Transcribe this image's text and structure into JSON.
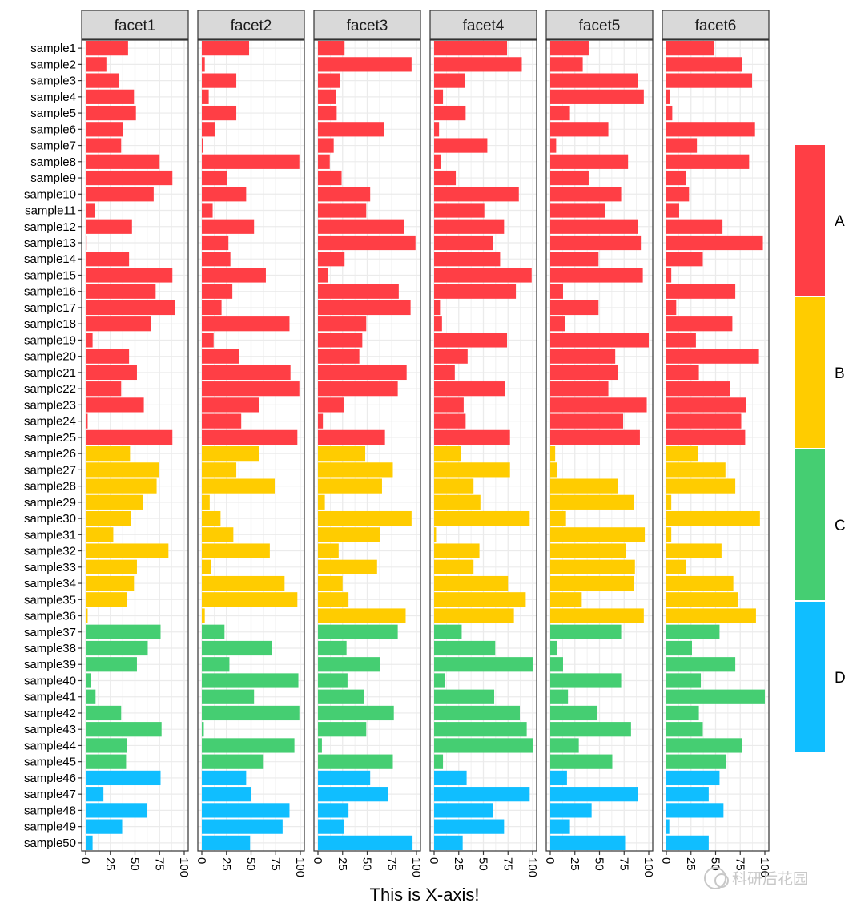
{
  "chart_data": {
    "type": "bar",
    "orientation": "horizontal",
    "xlabel": "This is X-axis!",
    "ylabel": "",
    "xlim": [
      0,
      100
    ],
    "x_ticks": [
      0,
      25,
      50,
      75,
      100
    ],
    "x_tick_labels": [
      "0",
      "25",
      "50",
      "75",
      "100"
    ],
    "grid": true,
    "legend_position": "right",
    "categories": [
      "sample1",
      "sample2",
      "sample3",
      "sample4",
      "sample5",
      "sample6",
      "sample7",
      "sample8",
      "sample9",
      "sample10",
      "sample11",
      "sample12",
      "sample13",
      "sample14",
      "sample15",
      "sample16",
      "sample17",
      "sample18",
      "sample19",
      "sample20",
      "sample21",
      "sample22",
      "sample23",
      "sample24",
      "sample25",
      "sample26",
      "sample27",
      "sample28",
      "sample29",
      "sample30",
      "sample31",
      "sample32",
      "sample33",
      "sample34",
      "sample35",
      "sample36",
      "sample37",
      "sample38",
      "sample39",
      "sample40",
      "sample41",
      "sample42",
      "sample43",
      "sample44",
      "sample45",
      "sample46",
      "sample47",
      "sample48",
      "sample49",
      "sample50"
    ],
    "groups": [
      "A",
      "A",
      "A",
      "A",
      "A",
      "A",
      "A",
      "A",
      "A",
      "A",
      "A",
      "A",
      "A",
      "A",
      "A",
      "A",
      "A",
      "A",
      "A",
      "A",
      "A",
      "A",
      "A",
      "A",
      "A",
      "B",
      "B",
      "B",
      "B",
      "B",
      "B",
      "B",
      "B",
      "B",
      "B",
      "B",
      "C",
      "C",
      "C",
      "C",
      "C",
      "C",
      "C",
      "C",
      "C",
      "D",
      "D",
      "D",
      "D",
      "D"
    ],
    "legend": [
      {
        "label": "A",
        "color": "#FF3E45"
      },
      {
        "label": "B",
        "color": "#FFCC00"
      },
      {
        "label": "C",
        "color": "#45CE72"
      },
      {
        "label": "D",
        "color": "#10BEFF"
      }
    ],
    "facets": [
      {
        "name": "facet1",
        "values": [
          43,
          21,
          34,
          49,
          51,
          38,
          36,
          75,
          88,
          69,
          9,
          47,
          1,
          44,
          88,
          71,
          91,
          66,
          7,
          44,
          52,
          36,
          59,
          2,
          88,
          45,
          74,
          72,
          58,
          46,
          28,
          84,
          52,
          49,
          42,
          2,
          76,
          63,
          52,
          5,
          10,
          36,
          77,
          42,
          41,
          76,
          18,
          62,
          37,
          7
        ]
      },
      {
        "name": "facet2",
        "values": [
          48,
          3,
          35,
          7,
          35,
          13,
          1,
          99,
          26,
          45,
          11,
          53,
          27,
          29,
          65,
          31,
          20,
          89,
          12,
          38,
          90,
          99,
          58,
          40,
          97,
          58,
          35,
          74,
          8,
          19,
          32,
          69,
          9,
          84,
          97,
          3,
          23,
          71,
          28,
          98,
          53,
          99,
          2,
          94,
          62,
          45,
          50,
          89,
          82,
          49
        ]
      },
      {
        "name": "facet3",
        "values": [
          27,
          95,
          22,
          18,
          19,
          67,
          16,
          12,
          24,
          53,
          49,
          87,
          99,
          27,
          10,
          82,
          94,
          49,
          45,
          42,
          90,
          81,
          26,
          5,
          68,
          48,
          76,
          65,
          7,
          95,
          63,
          21,
          60,
          25,
          31,
          89,
          81,
          29,
          63,
          30,
          47,
          77,
          49,
          4,
          76,
          53,
          71,
          31,
          26,
          96
        ]
      },
      {
        "name": "facet4",
        "values": [
          74,
          89,
          31,
          9,
          32,
          5,
          54,
          7,
          22,
          86,
          51,
          71,
          60,
          67,
          99,
          83,
          6,
          8,
          74,
          34,
          21,
          72,
          30,
          32,
          77,
          27,
          77,
          40,
          47,
          97,
          2,
          46,
          40,
          75,
          93,
          81,
          28,
          62,
          100,
          11,
          61,
          87,
          94,
          100,
          9,
          33,
          97,
          60,
          71,
          29
        ]
      },
      {
        "name": "facet5",
        "values": [
          39,
          33,
          89,
          95,
          20,
          59,
          6,
          79,
          39,
          72,
          56,
          89,
          92,
          49,
          94,
          13,
          49,
          15,
          100,
          66,
          69,
          59,
          98,
          74,
          91,
          5,
          7,
          69,
          85,
          16,
          96,
          77,
          86,
          85,
          32,
          95,
          72,
          7,
          13,
          72,
          18,
          48,
          82,
          29,
          63,
          17,
          89,
          42,
          20,
          76
        ]
      },
      {
        "name": "facet6",
        "values": [
          48,
          77,
          87,
          4,
          6,
          90,
          31,
          84,
          20,
          23,
          13,
          57,
          98,
          37,
          5,
          70,
          10,
          67,
          30,
          94,
          33,
          65,
          81,
          76,
          80,
          32,
          60,
          70,
          5,
          95,
          5,
          56,
          20,
          68,
          73,
          91,
          54,
          26,
          70,
          35,
          100,
          33,
          37,
          77,
          61,
          54,
          43,
          58,
          3,
          43
        ]
      }
    ]
  },
  "watermark": "科研后花园"
}
